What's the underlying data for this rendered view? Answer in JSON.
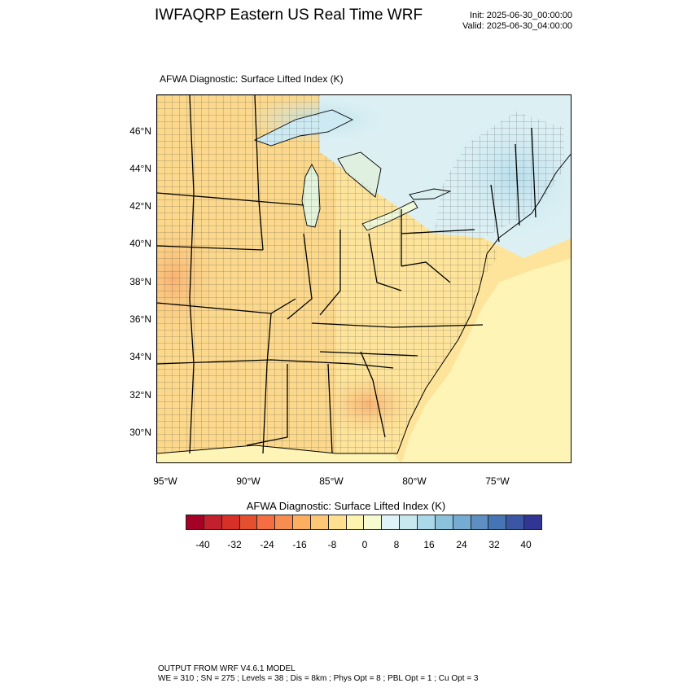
{
  "title": "IWFAQRP Eastern US Real Time WRF",
  "init": "Init: 2025-06-30_00:00:00",
  "valid": "Valid: 2025-06-30_04:00:00",
  "field_title": "AFWA Diagnostic: Surface Lifted Index   (K)",
  "lat_labels": [
    "46°N",
    "44°N",
    "42°N",
    "40°N",
    "38°N",
    "36°N",
    "34°N",
    "32°N",
    "30°N"
  ],
  "lon_labels": [
    "95°W",
    "90°W",
    "85°W",
    "80°W",
    "75°W"
  ],
  "colorbar": {
    "title": "AFWA Diagnostic: Surface Lifted Index  (K)",
    "ticks": [
      "-40",
      "-32",
      "-24",
      "-16",
      "-8",
      "0",
      "8",
      "16",
      "24",
      "32",
      "40"
    ],
    "colors": [
      "#a50026",
      "#c2202c",
      "#d73027",
      "#e4502f",
      "#f46d43",
      "#f88d52",
      "#fdae61",
      "#fdc776",
      "#fee090",
      "#fef4b0",
      "#f7fbd0",
      "#e0f3f8",
      "#c8e8f0",
      "#abd9e9",
      "#8bc3dd",
      "#74add1",
      "#5d8fc3",
      "#4575b4",
      "#3a56a4",
      "#313695"
    ]
  },
  "footer": {
    "line1": "OUTPUT FROM WRF V4.6.1 MODEL",
    "line2": "WE = 310 ; SN = 275 ; Levels = 38 ; Dis = 8km ; Phys Opt = 8 ; PBL Opt = 1 ; Cu Opt = 3"
  }
}
